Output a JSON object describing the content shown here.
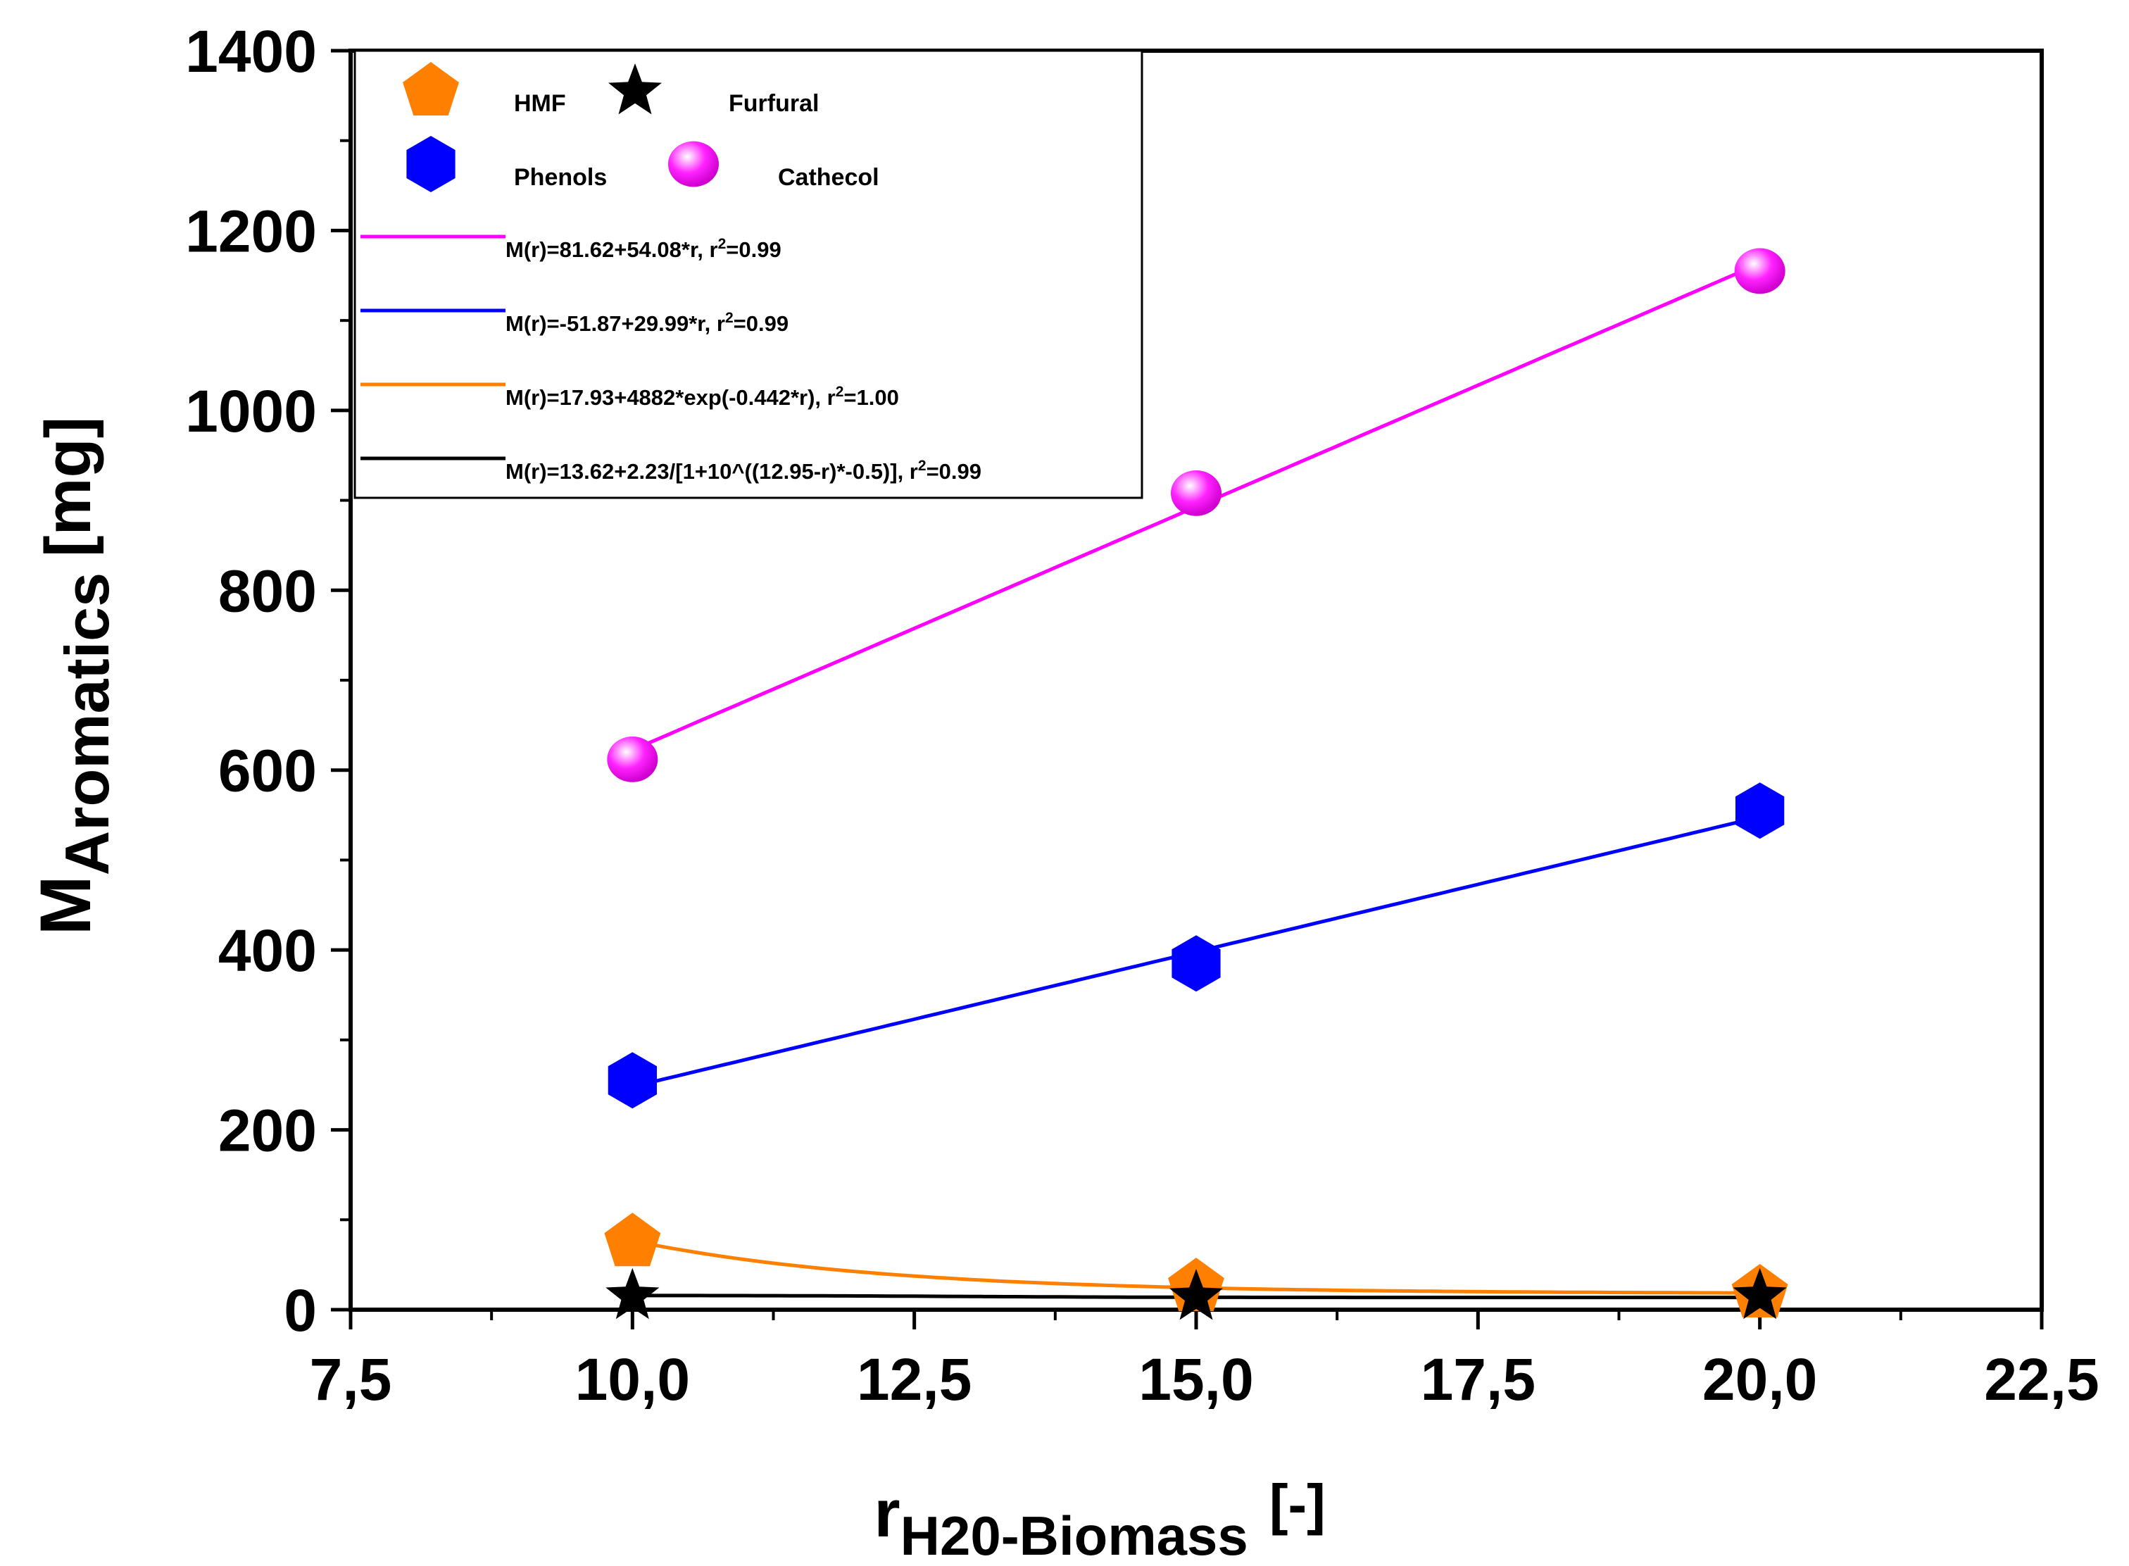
{
  "chart_data": {
    "type": "scatter",
    "title": "",
    "xlabel_main": "r",
    "xlabel_sub": "H20-Biomass",
    "xlabel_unit": "[-]",
    "ylabel_main": "M",
    "ylabel_sub": "Aromatics",
    "ylabel_unit": "[mg]",
    "xlim": [
      7.5,
      22.5
    ],
    "ylim": [
      0,
      1400
    ],
    "x_ticks": [
      7.5,
      10.0,
      12.5,
      15.0,
      17.5,
      20.0,
      22.5
    ],
    "x_tick_labels": [
      "7,5",
      "10,0",
      "12,5",
      "15,0",
      "17,5",
      "20,0",
      "22,5"
    ],
    "y_ticks": [
      0,
      200,
      400,
      600,
      800,
      1000,
      1200,
      1400
    ],
    "y_tick_labels": [
      "0",
      "200",
      "400",
      "600",
      "800",
      "1000",
      "1200",
      "1400"
    ],
    "grid": false,
    "legend_position": "top-left",
    "series": [
      {
        "name": "HMF",
        "marker": "pentagon",
        "color": "#ff8000",
        "x": [
          10,
          15,
          20
        ],
        "values": [
          75,
          25,
          18
        ]
      },
      {
        "name": "Furfural",
        "marker": "star",
        "color": "#000000",
        "x": [
          10,
          15,
          20
        ],
        "values": [
          15,
          14,
          15
        ]
      },
      {
        "name": "Phenols",
        "marker": "hexagon",
        "color": "#0000ff",
        "x": [
          10,
          15,
          20
        ],
        "values": [
          255,
          385,
          555
        ]
      },
      {
        "name": "Cathecol",
        "marker": "sphere",
        "color": "#ff00ff",
        "x": [
          10,
          15,
          20
        ],
        "values": [
          612,
          908,
          1155
        ]
      }
    ],
    "fits": [
      {
        "series": "Cathecol",
        "color": "#ff00ff",
        "kind": "linear",
        "a": 81.62,
        "b": 54.08,
        "label_main": "M(r)=81.62+54.08*r, r",
        "label_tail": "=0.99"
      },
      {
        "series": "Phenols",
        "color": "#0000ff",
        "kind": "linear",
        "a": -51.87,
        "b": 29.99,
        "label_main": "M(r)=-51.87+29.99*r, r",
        "label_tail": "=0.99"
      },
      {
        "series": "HMF",
        "color": "#ff8000",
        "kind": "exp",
        "a": 17.93,
        "b": 4882,
        "c": -0.442,
        "label_main": "M(r)=17.93+4882*exp(-0.442*r), r",
        "label_tail": "=1.00"
      },
      {
        "series": "Furfural",
        "color": "#000000",
        "kind": "logistic",
        "a": 13.62,
        "b": 2.23,
        "x0": 12.95,
        "p": -0.5,
        "label_main": "M(r)=13.62+2.23/[1+10^((12.95-r)*-0.5)], r",
        "label_tail": "=0.99"
      }
    ],
    "sup_two": "2"
  }
}
